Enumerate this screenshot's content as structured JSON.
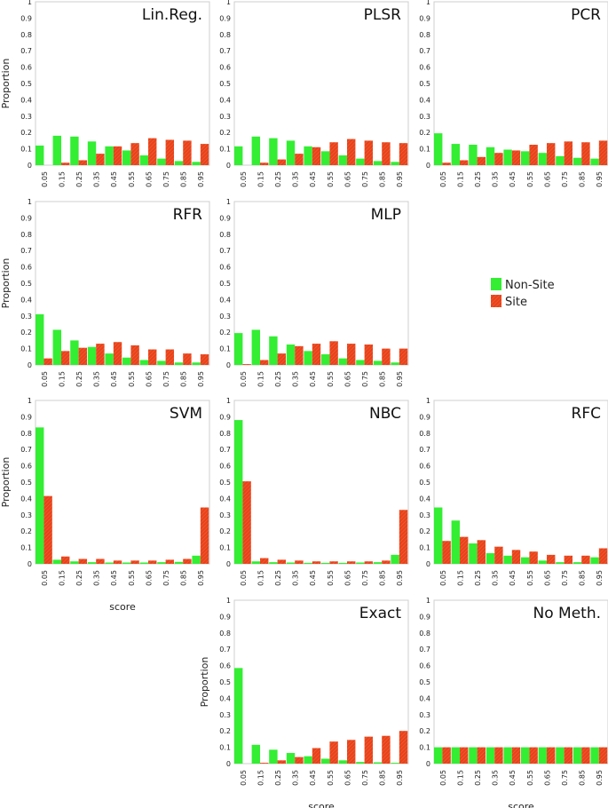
{
  "colors": {
    "non_site": "#33ee33",
    "site": "#e8421c",
    "frame": "#cfcfcf"
  },
  "legend": {
    "non_site": "Non-Site",
    "site": "Site"
  },
  "chart_data": [
    {
      "type": "bar",
      "title": "Lin.Reg.",
      "xlabel": "",
      "ylabel": "Proportion",
      "ylim": [
        0,
        1
      ],
      "categories": [
        "0.05",
        "0.15",
        "0.25",
        "0.35",
        "0.45",
        "0.55",
        "0.65",
        "0.75",
        "0.85",
        "0.95"
      ],
      "yticks": [
        "0",
        "0.1",
        "0.2",
        "0.3",
        "0.4",
        "0.5",
        "0.6",
        "0.7",
        "0.8",
        "0.9",
        "1"
      ],
      "series": [
        {
          "name": "Non-Site",
          "values": [
            0.12,
            0.18,
            0.175,
            0.145,
            0.115,
            0.09,
            0.06,
            0.04,
            0.025,
            0.02
          ]
        },
        {
          "name": "Site",
          "values": [
            0.0,
            0.015,
            0.03,
            0.07,
            0.115,
            0.135,
            0.165,
            0.155,
            0.15,
            0.13
          ]
        }
      ]
    },
    {
      "type": "bar",
      "title": "PLSR",
      "xlabel": "",
      "ylabel": "",
      "ylim": [
        0,
        1
      ],
      "categories": [
        "0.05",
        "0.15",
        "0.25",
        "0.35",
        "0.45",
        "0.55",
        "0.65",
        "0.75",
        "0.85",
        "0.95"
      ],
      "yticks": [
        "0",
        "0.1",
        "0.2",
        "0.3",
        "0.4",
        "0.5",
        "0.6",
        "0.7",
        "0.8",
        "0.9",
        "1"
      ],
      "series": [
        {
          "name": "Non-Site",
          "values": [
            0.115,
            0.175,
            0.165,
            0.15,
            0.115,
            0.085,
            0.06,
            0.04,
            0.025,
            0.02
          ]
        },
        {
          "name": "Site",
          "values": [
            0.0,
            0.015,
            0.035,
            0.07,
            0.11,
            0.14,
            0.16,
            0.15,
            0.14,
            0.135
          ]
        }
      ]
    },
    {
      "type": "bar",
      "title": "PCR",
      "xlabel": "",
      "ylabel": "",
      "ylim": [
        0,
        1
      ],
      "categories": [
        "0.05",
        "0.15",
        "0.25",
        "0.35",
        "0.45",
        "0.55",
        "0.65",
        "0.75",
        "0.85",
        "0.95"
      ],
      "yticks": [
        "0",
        "0.1",
        "0.2",
        "0.3",
        "0.4",
        "0.5",
        "0.6",
        "0.7",
        "0.8",
        "0.9",
        "1"
      ],
      "series": [
        {
          "name": "Non-Site",
          "values": [
            0.195,
            0.13,
            0.125,
            0.11,
            0.095,
            0.085,
            0.075,
            0.055,
            0.045,
            0.04
          ]
        },
        {
          "name": "Site",
          "values": [
            0.015,
            0.03,
            0.05,
            0.075,
            0.09,
            0.125,
            0.135,
            0.145,
            0.14,
            0.15
          ]
        }
      ]
    },
    {
      "type": "bar",
      "title": "RFR",
      "xlabel": "",
      "ylabel": "Proportion",
      "ylim": [
        0,
        1
      ],
      "categories": [
        "0.05",
        "0.15",
        "0.25",
        "0.35",
        "0.45",
        "0.55",
        "0.65",
        "0.75",
        "0.85",
        "0.95"
      ],
      "yticks": [
        "0",
        "0.1",
        "0.2",
        "0.3",
        "0.4",
        "0.5",
        "0.6",
        "0.7",
        "0.8",
        "0.9",
        "1"
      ],
      "series": [
        {
          "name": "Non-Site",
          "values": [
            0.31,
            0.215,
            0.15,
            0.11,
            0.07,
            0.045,
            0.03,
            0.025,
            0.015,
            0.015
          ]
        },
        {
          "name": "Site",
          "values": [
            0.04,
            0.085,
            0.105,
            0.13,
            0.14,
            0.12,
            0.095,
            0.095,
            0.07,
            0.065
          ]
        }
      ]
    },
    {
      "type": "bar",
      "title": "MLP",
      "xlabel": "",
      "ylabel": "",
      "ylim": [
        0,
        1
      ],
      "categories": [
        "0.05",
        "0.15",
        "0.25",
        "0.35",
        "0.45",
        "0.55",
        "0.65",
        "0.75",
        "0.85",
        "0.95"
      ],
      "yticks": [
        "0",
        "0.1",
        "0.2",
        "0.3",
        "0.4",
        "0.5",
        "0.6",
        "0.7",
        "0.8",
        "0.9",
        "1"
      ],
      "series": [
        {
          "name": "Non-Site",
          "values": [
            0.195,
            0.215,
            0.175,
            0.125,
            0.085,
            0.065,
            0.04,
            0.03,
            0.025,
            0.015
          ]
        },
        {
          "name": "Site",
          "values": [
            0.005,
            0.03,
            0.07,
            0.115,
            0.13,
            0.145,
            0.13,
            0.125,
            0.1,
            0.1
          ]
        }
      ]
    },
    {
      "type": "bar",
      "title": "SVM",
      "xlabel": "score",
      "ylabel": "Proportion",
      "ylim": [
        0,
        1
      ],
      "categories": [
        "0.05",
        "0.15",
        "0.25",
        "0.35",
        "0.45",
        "0.55",
        "0.65",
        "0.75",
        "0.85",
        "0.95"
      ],
      "yticks": [
        "0",
        "0.1",
        "0.2",
        "0.3",
        "0.4",
        "0.5",
        "0.6",
        "0.7",
        "0.8",
        "0.9",
        "1"
      ],
      "series": [
        {
          "name": "Non-Site",
          "values": [
            0.835,
            0.025,
            0.015,
            0.01,
            0.008,
            0.008,
            0.008,
            0.01,
            0.012,
            0.05
          ]
        },
        {
          "name": "Site",
          "values": [
            0.415,
            0.045,
            0.03,
            0.03,
            0.02,
            0.02,
            0.02,
            0.025,
            0.03,
            0.345
          ]
        }
      ]
    },
    {
      "type": "bar",
      "title": "NBC",
      "xlabel": "",
      "ylabel": "",
      "ylim": [
        0,
        1
      ],
      "categories": [
        "0.05",
        "0.15",
        "0.25",
        "0.35",
        "0.45",
        "0.55",
        "0.65",
        "0.75",
        "0.85",
        "0.95"
      ],
      "yticks": [
        "0",
        "0.1",
        "0.2",
        "0.3",
        "0.4",
        "0.5",
        "0.6",
        "0.7",
        "0.8",
        "0.9",
        "1"
      ],
      "series": [
        {
          "name": "Non-Site",
          "values": [
            0.88,
            0.015,
            0.01,
            0.008,
            0.006,
            0.006,
            0.006,
            0.008,
            0.01,
            0.055
          ]
        },
        {
          "name": "Site",
          "values": [
            0.505,
            0.035,
            0.025,
            0.02,
            0.015,
            0.015,
            0.015,
            0.015,
            0.02,
            0.33
          ]
        }
      ]
    },
    {
      "type": "bar",
      "title": "RFC",
      "xlabel": "",
      "ylabel": "",
      "ylim": [
        0,
        1
      ],
      "categories": [
        "0.05",
        "0.15",
        "0.25",
        "0.35",
        "0.45",
        "0.55",
        "0.65",
        "0.75",
        "0.85",
        "0.95"
      ],
      "yticks": [
        "0",
        "0.1",
        "0.2",
        "0.3",
        "0.4",
        "0.5",
        "0.6",
        "0.7",
        "0.8",
        "0.9",
        "1"
      ],
      "series": [
        {
          "name": "Non-Site",
          "values": [
            0.345,
            0.265,
            0.125,
            0.065,
            0.05,
            0.04,
            0.02,
            0.01,
            0.01,
            0.04
          ]
        },
        {
          "name": "Site",
          "values": [
            0.14,
            0.165,
            0.145,
            0.105,
            0.085,
            0.075,
            0.055,
            0.05,
            0.05,
            0.095
          ]
        }
      ]
    },
    {
      "type": "bar",
      "title": "Exact",
      "xlabel": "score",
      "ylabel": "Proportion",
      "ylim": [
        0,
        1
      ],
      "categories": [
        "0.05",
        "0.15",
        "0.25",
        "0.35",
        "0.45",
        "0.55",
        "0.65",
        "0.75",
        "0.85",
        "0.95"
      ],
      "yticks": [
        "0",
        "0.1",
        "0.2",
        "0.3",
        "0.4",
        "0.5",
        "0.6",
        "0.7",
        "0.8",
        "0.9",
        "1"
      ],
      "series": [
        {
          "name": "Non-Site",
          "values": [
            0.585,
            0.115,
            0.085,
            0.065,
            0.045,
            0.03,
            0.02,
            0.01,
            0.008,
            0.005
          ]
        },
        {
          "name": "Site",
          "values": [
            0.0,
            0.005,
            0.02,
            0.04,
            0.095,
            0.135,
            0.145,
            0.165,
            0.17,
            0.2
          ]
        }
      ]
    },
    {
      "type": "bar",
      "title": "No Meth.",
      "xlabel": "score",
      "ylabel": "",
      "ylim": [
        0,
        1
      ],
      "categories": [
        "0.05",
        "0.15",
        "0.25",
        "0.35",
        "0.45",
        "0.55",
        "0.65",
        "0.75",
        "0.85",
        "0.95"
      ],
      "yticks": [
        "0",
        "0.1",
        "0.2",
        "0.3",
        "0.4",
        "0.5",
        "0.6",
        "0.7",
        "0.8",
        "0.9",
        "1"
      ],
      "series": [
        {
          "name": "Non-Site",
          "values": [
            0.1,
            0.1,
            0.1,
            0.1,
            0.1,
            0.1,
            0.1,
            0.1,
            0.1,
            0.1
          ]
        },
        {
          "name": "Site",
          "values": [
            0.1,
            0.1,
            0.1,
            0.1,
            0.1,
            0.1,
            0.1,
            0.1,
            0.1,
            0.1
          ]
        }
      ]
    }
  ]
}
